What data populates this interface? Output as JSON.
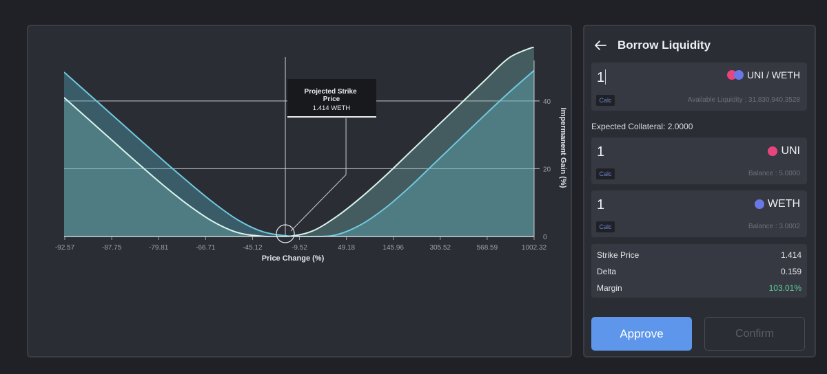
{
  "chart_data": {
    "type": "area",
    "title": "",
    "xlabel": "Price Change (%)",
    "ylabel": "Impermanent Gain (%)",
    "x_tick_labels": [
      "-92.57",
      "-87.75",
      "-79.81",
      "-66.71",
      "-45.12",
      "-9.52",
      "49.18",
      "145.96",
      "305.52",
      "568.59",
      "1002.32"
    ],
    "y_ticks": [
      0,
      20,
      40
    ],
    "ylim": [
      0,
      56
    ],
    "grid": true,
    "series": [
      {
        "values": [
          41,
          34.5,
          28,
          21.5,
          15.2,
          9.4,
          4.5,
          1.2,
          0.1,
          0.0,
          1.5,
          5.8,
          11.5,
          18,
          25,
          32,
          39,
          46,
          52.8,
          56
        ]
      },
      {
        "values": [
          48.5,
          42,
          35.5,
          29,
          22.5,
          16.2,
          10.2,
          5.0,
          1.5,
          0.2,
          0.0,
          0.5,
          3.5,
          8.5,
          14.8,
          21.8,
          28.8,
          35.8,
          42.6,
          49
        ]
      }
    ],
    "annotation": {
      "title": "Projected Strike Price",
      "value": "1.414 WETH"
    }
  },
  "panel": {
    "title": "Borrow Liquidity",
    "borrow": {
      "value": "1",
      "pair": "UNI / WETH",
      "calc": "Calc",
      "sub": "Available Liquidity : 31,830,940.3528"
    },
    "expected_collateral": "Expected Collateral: 2.0000",
    "uni": {
      "value": "1",
      "token": "UNI",
      "calc": "Calc",
      "sub": "Balance : 5.0000"
    },
    "weth": {
      "value": "1",
      "token": "WETH",
      "calc": "Calc",
      "sub": "Balance : 3.0002"
    },
    "stats": [
      {
        "label": "Strike Price",
        "value": "1.414"
      },
      {
        "label": "Delta",
        "value": "0.159"
      },
      {
        "label": "Margin",
        "value": "103.01%"
      }
    ],
    "approve_label": "Approve",
    "confirm_label": "Confirm"
  },
  "colors": {
    "accent_blue": "#5d96ea",
    "margin_green": "#5fce9c",
    "curve_cyan": "#6fcbe0",
    "curve_white": "#d8f5ec"
  }
}
